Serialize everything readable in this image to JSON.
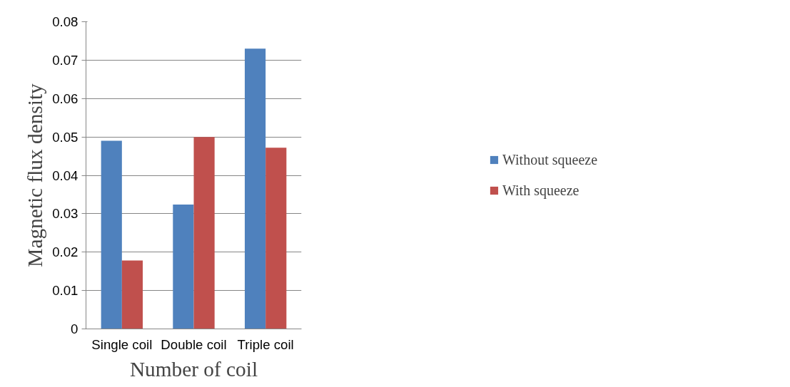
{
  "chart_data": {
    "type": "bar",
    "xlabel": "Number of coil",
    "ylabel": "Magnetic flux density",
    "categories": [
      "Single coil",
      "Double coil",
      "Triple coil"
    ],
    "series": [
      {
        "name": "Without squeeze",
        "color": "#4f81bd",
        "values": [
          0.049,
          0.0324,
          0.073
        ]
      },
      {
        "name": "With squeeze",
        "color": "#c0504d",
        "values": [
          0.0178,
          0.05,
          0.0472
        ]
      }
    ],
    "ylim": [
      0,
      0.08
    ],
    "yticks": [
      {
        "value": 0,
        "label": "0"
      },
      0.01,
      0.02,
      0.03,
      0.04,
      0.05,
      0.06,
      0.07,
      0.08
    ],
    "grid": "y",
    "legend": "right"
  }
}
